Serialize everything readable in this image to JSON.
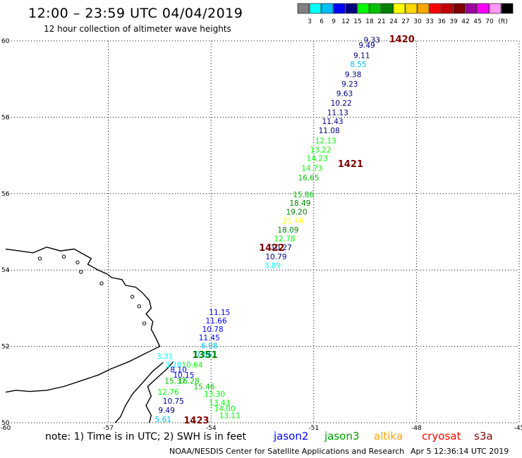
{
  "header": {
    "title": "12:00 – 23:59 UTC 04/04/2019",
    "subtitle": "12 hour collection of altimeter wave heights"
  },
  "colorbar": {
    "unit": "(ft)",
    "swatches": [
      {
        "color": "#808080",
        "label": ""
      },
      {
        "color": "#00ffff",
        "label": "3"
      },
      {
        "color": "#00bfff",
        "label": "6"
      },
      {
        "color": "#0000ff",
        "label": "9"
      },
      {
        "color": "#000080",
        "label": "12"
      },
      {
        "color": "#00ff00",
        "label": "15"
      },
      {
        "color": "#00c000",
        "label": "18"
      },
      {
        "color": "#008000",
        "label": "21"
      },
      {
        "color": "#ffff00",
        "label": "24"
      },
      {
        "color": "#ffd700",
        "label": "27"
      },
      {
        "color": "#ffa500",
        "label": "30"
      },
      {
        "color": "#ff0000",
        "label": "33"
      },
      {
        "color": "#c00000",
        "label": "36"
      },
      {
        "color": "#800000",
        "label": "39"
      },
      {
        "color": "#a000a0",
        "label": "42"
      },
      {
        "color": "#ff00ff",
        "label": "45"
      },
      {
        "color": "#ff99ff",
        "label": "70"
      },
      {
        "color": "#000000",
        "label": ""
      }
    ]
  },
  "axes": {
    "lon_ticks": [
      {
        "v": -60,
        "label": "-60"
      },
      {
        "v": -57,
        "label": "-57"
      },
      {
        "v": -54,
        "label": "-54"
      },
      {
        "v": -51,
        "label": "-51"
      },
      {
        "v": -48,
        "label": "-48"
      },
      {
        "v": -45,
        "label": "-45"
      }
    ],
    "lat_ticks": [
      {
        "v": 50,
        "label": "50"
      },
      {
        "v": 52,
        "label": "52"
      },
      {
        "v": 54,
        "label": "54"
      },
      {
        "v": 56,
        "label": "56"
      },
      {
        "v": 58,
        "label": "58"
      },
      {
        "v": 60,
        "label": "60"
      }
    ]
  },
  "pass_labels": [
    {
      "text": "1420",
      "lon": -48.8,
      "lat": 59.96,
      "color": "#800000"
    },
    {
      "text": "1421",
      "lon": -50.3,
      "lat": 56.7,
      "color": "#800000"
    },
    {
      "text": "1422",
      "lon": -52.6,
      "lat": 54.5,
      "color": "#800000"
    },
    {
      "text": "1351",
      "lon": -54.55,
      "lat": 51.7,
      "color": "#008000"
    },
    {
      "text": "1423",
      "lon": -54.8,
      "lat": 49.98,
      "color": "#800000"
    }
  ],
  "observations": [
    {
      "v": "9.33",
      "lon": -49.3,
      "lat": 59.95,
      "c": "#000080"
    },
    {
      "v": "9.49",
      "lon": -49.45,
      "lat": 59.82,
      "c": "#000080"
    },
    {
      "v": "9.11",
      "lon": -49.6,
      "lat": 59.55,
      "c": "#000080"
    },
    {
      "v": "8.55",
      "lon": -49.7,
      "lat": 59.32,
      "c": "#00bfff"
    },
    {
      "v": "9.38",
      "lon": -49.85,
      "lat": 59.05,
      "c": "#000080"
    },
    {
      "v": "9.23",
      "lon": -49.95,
      "lat": 58.8,
      "c": "#000080"
    },
    {
      "v": "9.63",
      "lon": -50.1,
      "lat": 58.55,
      "c": "#000080"
    },
    {
      "v": "10.22",
      "lon": -50.2,
      "lat": 58.3,
      "c": "#000080"
    },
    {
      "v": "11.13",
      "lon": -50.3,
      "lat": 58.05,
      "c": "#000080"
    },
    {
      "v": "11.43",
      "lon": -50.45,
      "lat": 57.82,
      "c": "#000080"
    },
    {
      "v": "11.08",
      "lon": -50.55,
      "lat": 57.58,
      "c": "#000080"
    },
    {
      "v": "12.13",
      "lon": -50.65,
      "lat": 57.32,
      "c": "#00ff00"
    },
    {
      "v": "13.22",
      "lon": -50.8,
      "lat": 57.08,
      "c": "#00ff00"
    },
    {
      "v": "14.23",
      "lon": -50.9,
      "lat": 56.85,
      "c": "#00ff00"
    },
    {
      "v": "14.73",
      "lon": -51.05,
      "lat": 56.6,
      "c": "#00ff00"
    },
    {
      "v": "16.65",
      "lon": -51.15,
      "lat": 56.35,
      "c": "#00c000"
    },
    {
      "v": "15.86",
      "lon": -51.3,
      "lat": 55.9,
      "c": "#00c000"
    },
    {
      "v": "18.49",
      "lon": -51.4,
      "lat": 55.68,
      "c": "#008000"
    },
    {
      "v": "19.20",
      "lon": -51.5,
      "lat": 55.45,
      "c": "#008000"
    },
    {
      "v": "21.46",
      "lon": -51.6,
      "lat": 55.22,
      "c": "#ffff00"
    },
    {
      "v": "18.09",
      "lon": -51.75,
      "lat": 54.98,
      "c": "#008000"
    },
    {
      "v": "12.78",
      "lon": -51.85,
      "lat": 54.75,
      "c": "#00ff00"
    },
    {
      "v": "10.27",
      "lon": -51.95,
      "lat": 54.52,
      "c": "#000080"
    },
    {
      "v": "10.79",
      "lon": -52.1,
      "lat": 54.28,
      "c": "#000080"
    },
    {
      "v": "3.89",
      "lon": -52.2,
      "lat": 54.05,
      "c": "#00ffff"
    },
    {
      "v": "11.15",
      "lon": -53.75,
      "lat": 52.82,
      "c": "#0000ff"
    },
    {
      "v": "11.66",
      "lon": -53.85,
      "lat": 52.6,
      "c": "#0000ff"
    },
    {
      "v": "10.78",
      "lon": -53.95,
      "lat": 52.38,
      "c": "#0000ff"
    },
    {
      "v": "11.45",
      "lon": -54.05,
      "lat": 52.16,
      "c": "#0000ff"
    },
    {
      "v": "6.98",
      "lon": -54.05,
      "lat": 51.95,
      "c": "#00bfff"
    },
    {
      "v": "7.56",
      "lon": -54.2,
      "lat": 51.72,
      "c": "#00bfff"
    },
    {
      "v": "3.31",
      "lon": -55.35,
      "lat": 51.67,
      "c": "#00ffff"
    },
    {
      "v": "3.28",
      "lon": -55.1,
      "lat": 51.45,
      "c": "#00ffff"
    },
    {
      "v": "10.64",
      "lon": -54.55,
      "lat": 51.45,
      "c": "#00ff00"
    },
    {
      "v": "8.10",
      "lon": -54.95,
      "lat": 51.32,
      "c": "#0000ff"
    },
    {
      "v": "10.15",
      "lon": -54.8,
      "lat": 51.18,
      "c": "#0000ff"
    },
    {
      "v": "15.37",
      "lon": -55.05,
      "lat": 51.02,
      "c": "#00c000"
    },
    {
      "v": "16.28",
      "lon": -54.65,
      "lat": 51.02,
      "c": "#00c000"
    },
    {
      "v": "15.46",
      "lon": -54.2,
      "lat": 50.88,
      "c": "#00c000"
    },
    {
      "v": "12.76",
      "lon": -55.25,
      "lat": 50.74,
      "c": "#00ff00"
    },
    {
      "v": "13.30",
      "lon": -53.9,
      "lat": 50.68,
      "c": "#00ff00"
    },
    {
      "v": "10.75",
      "lon": -55.1,
      "lat": 50.5,
      "c": "#000080"
    },
    {
      "v": "13.43",
      "lon": -53.75,
      "lat": 50.45,
      "c": "#00ff00"
    },
    {
      "v": "14.00",
      "lon": -53.6,
      "lat": 50.3,
      "c": "#00ff00"
    },
    {
      "v": "9.49",
      "lon": -55.3,
      "lat": 50.26,
      "c": "#000080"
    },
    {
      "v": "13.11",
      "lon": -53.45,
      "lat": 50.12,
      "c": "#00ff00"
    },
    {
      "v": "5.61",
      "lon": -55.4,
      "lat": 50.02,
      "c": "#00bfff"
    }
  ],
  "footer": {
    "note": "note: 1) Time is in UTC; 2) SWH is in feet",
    "credit": "NOAA/NESDIS Center for Satellite Applications and Research",
    "timestamp": "Apr  5 12:36:14 UTC 2019",
    "legend": [
      {
        "label": "jason2",
        "color": "#0000ff"
      },
      {
        "label": "jason3",
        "color": "#00a000"
      },
      {
        "label": "altika",
        "color": "#ffa500"
      },
      {
        "label": "cryosat",
        "color": "#ff0000"
      },
      {
        "label": "s3a",
        "color": "#800000"
      }
    ]
  }
}
